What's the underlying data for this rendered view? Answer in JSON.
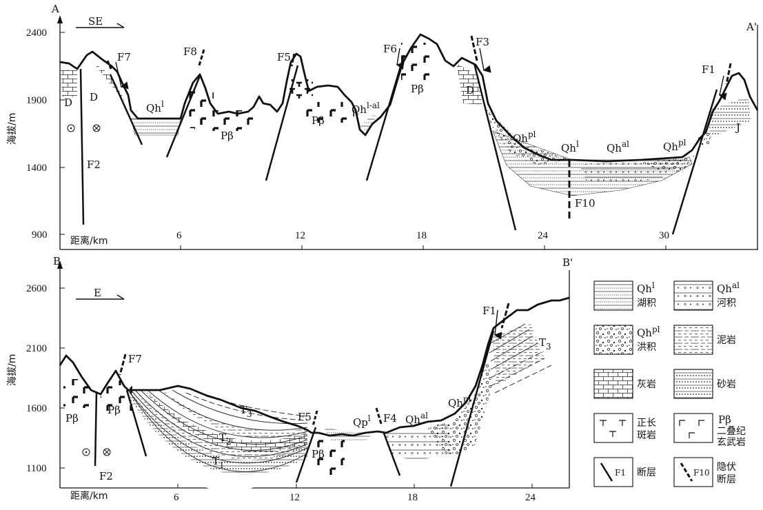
{
  "top_section": {
    "left_end": "A",
    "right_end": "A'",
    "direction": "SE",
    "y_axis_label": "海拔/m",
    "y_ticks": [
      "2400",
      "1900",
      "1400",
      "900"
    ],
    "x_axis_label": "距离/km",
    "x_ticks": [
      "6",
      "12",
      "18",
      "24",
      "30"
    ],
    "faults": [
      "F7",
      "F8",
      "F5",
      "F6",
      "F3",
      "F1",
      "F2",
      "F10"
    ],
    "units": {
      "d1": "D",
      "d2": "D",
      "d3": "D",
      "qh_l_1": "Qh",
      "qh_l_1_sup": "l",
      "pb1": "Pβ",
      "pb2": "Pβ",
      "pb3": "Pβ",
      "qh_lal": "Qh",
      "qh_lal_sup": "l-al",
      "qh_pl_1": "Qh",
      "qh_pl_1_sup": "pl",
      "qh_l_2": "Qh",
      "qh_l_2_sup": "l",
      "qh_al": "Qh",
      "qh_al_sup": "al",
      "qh_pl_2": "Qh",
      "qh_pl_2_sup": "pl",
      "j": "J"
    }
  },
  "bottom_section": {
    "left_end": "B",
    "right_end": "B'",
    "direction": "E",
    "y_axis_label": "海拔/m",
    "y_ticks": [
      "2600",
      "2100",
      "1600",
      "1100"
    ],
    "x_axis_label": "距离/km",
    "x_ticks": [
      "6",
      "12",
      "18",
      "24"
    ],
    "faults": [
      "F7",
      "F2",
      "F5",
      "F4",
      "F1"
    ],
    "units": {
      "pb1": "Pβ",
      "pb2": "Pβ",
      "pb3": "Pβ",
      "t3a": "T",
      "t3a_sub": "3",
      "t2": "T",
      "t2_sub": "2",
      "t1": "T",
      "t1_sub": "1",
      "qp": "Qp",
      "qp_sup": "l",
      "qh_al": "Qh",
      "qh_al_sup": "al",
      "qh_pl": "Qh",
      "qh_pl_sup": "pl",
      "t3b": "T",
      "t3b_sub": "3"
    }
  },
  "legend": {
    "items": [
      {
        "code": "Qh",
        "sup": "l",
        "name": "湖积"
      },
      {
        "code": "Qh",
        "sup": "al",
        "name": "河积"
      },
      {
        "code": "Qh",
        "sup": "pl",
        "name": "洪积"
      },
      {
        "code": "",
        "sup": "",
        "name": "泥岩"
      },
      {
        "code": "",
        "sup": "",
        "name": "灰岩"
      },
      {
        "code": "",
        "sup": "",
        "name": "砂岩"
      },
      {
        "code": "",
        "sup": "",
        "name": "正长",
        "name2": "斑岩"
      },
      {
        "code": "Pβ",
        "sup": "",
        "name": "二叠纪",
        "name2": "玄武岩"
      },
      {
        "code": "F1",
        "sup": "",
        "name": "断层"
      },
      {
        "code": "F10",
        "sup": "",
        "name": "隐伏",
        "name2": "断层"
      }
    ]
  }
}
